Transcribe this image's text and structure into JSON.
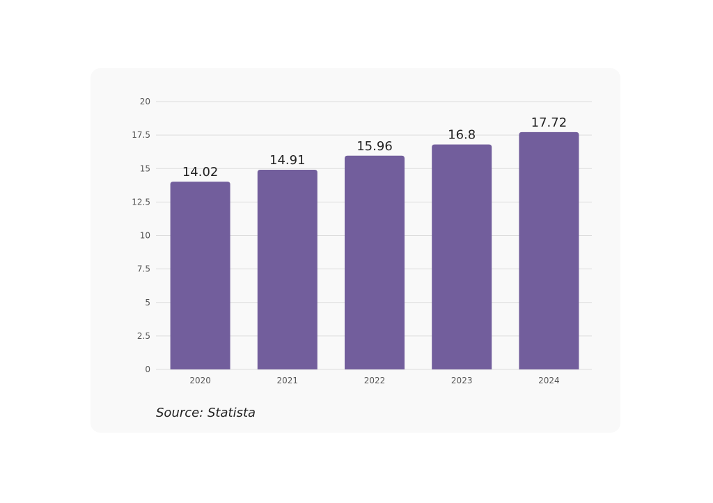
{
  "chart_data": {
    "type": "bar",
    "categories": [
      "2020",
      "2021",
      "2022",
      "2023",
      "2024"
    ],
    "values": [
      14.02,
      14.91,
      15.96,
      16.8,
      17.72
    ],
    "value_labels": [
      "14.02",
      "14.91",
      "15.96",
      "16.8",
      "17.72"
    ],
    "y_ticks": [
      0,
      2.5,
      5,
      7.5,
      10,
      12.5,
      15,
      17.5,
      20
    ],
    "y_tick_labels": [
      "0",
      "2.5",
      "5",
      "7.5",
      "10",
      "12.5",
      "15",
      "17.5",
      "20"
    ],
    "ylim": [
      0,
      20
    ],
    "grid": true,
    "title": "",
    "xlabel": "",
    "ylabel": "",
    "bar_color": "#725e9c",
    "gridline_color": "#dddddd"
  },
  "source": "Source: Statista"
}
